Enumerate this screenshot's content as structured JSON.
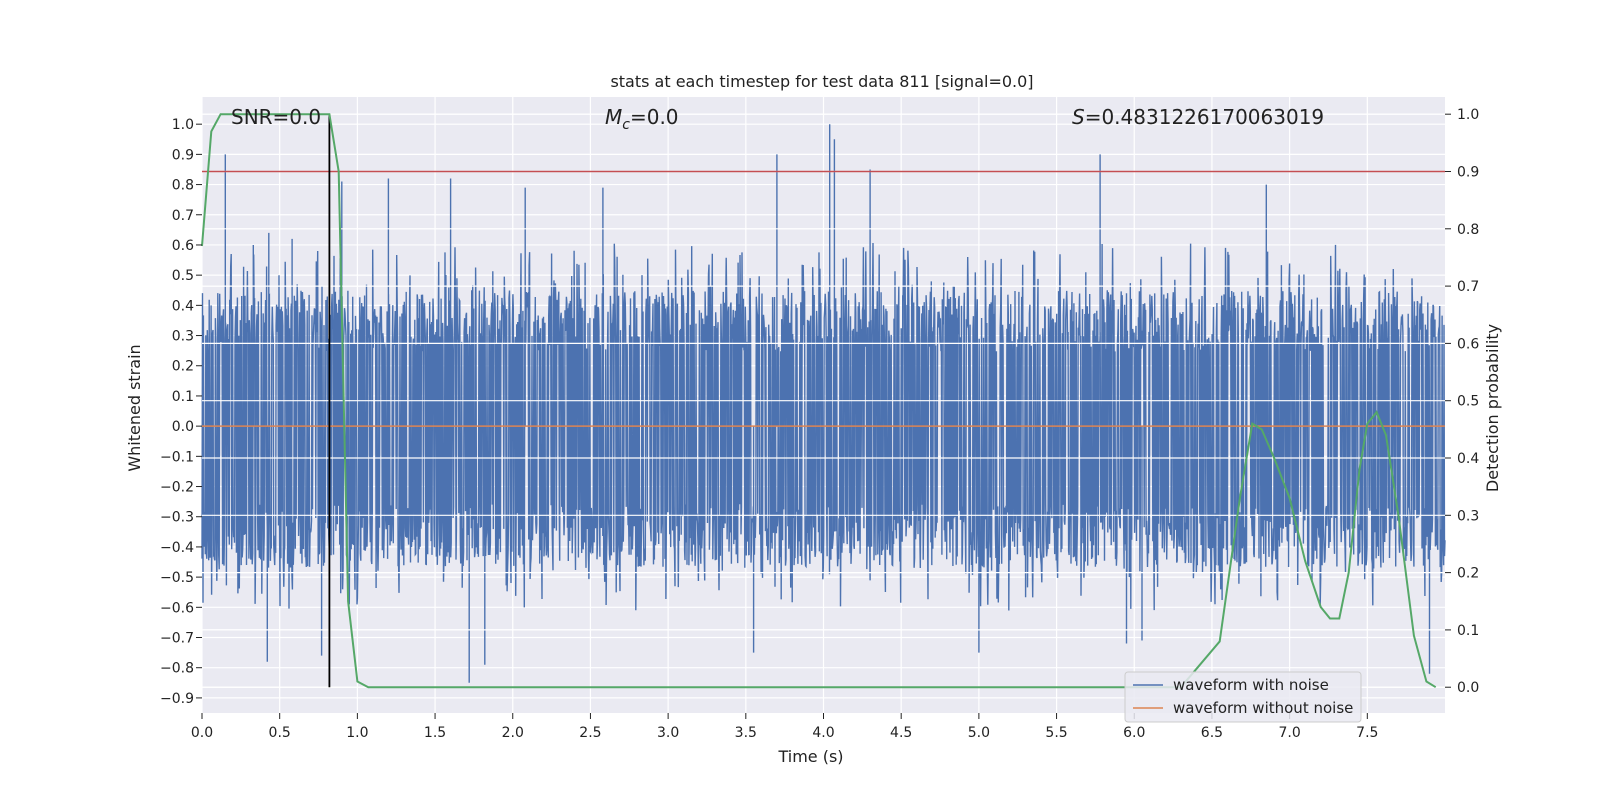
{
  "chart_data": {
    "type": "line",
    "title": "stats at each timestep for test data 811 [signal=0.0]",
    "xlabel": "Time (s)",
    "ylabel": "Whitened strain",
    "y2label": "Detection probability",
    "xlim": [
      0.0,
      8.0
    ],
    "ylim": [
      -0.95,
      1.09
    ],
    "y2lim": [
      -0.045,
      1.03
    ],
    "x_ticks": [
      "0.0",
      "0.5",
      "1.0",
      "1.5",
      "2.0",
      "2.5",
      "3.0",
      "3.5",
      "4.0",
      "4.5",
      "5.0",
      "5.5",
      "6.0",
      "6.5",
      "7.0",
      "7.5"
    ],
    "y_ticks": [
      "1.0",
      "0.9",
      "0.8",
      "0.7",
      "0.6",
      "0.5",
      "0.4",
      "0.3",
      "0.2",
      "0.1",
      "0.0",
      "-0.1",
      "-0.2",
      "-0.3",
      "-0.4",
      "-0.5",
      "-0.6",
      "-0.7",
      "-0.8",
      "-0.9"
    ],
    "y2_ticks": [
      "1.0",
      "0.9",
      "0.8",
      "0.7",
      "0.6",
      "0.5",
      "0.4",
      "0.3",
      "0.2",
      "0.1",
      "0.0"
    ],
    "grid": true,
    "background": "#eaeaf2",
    "legend_position": "lower-right",
    "annotations": {
      "snr": "SNR=0.0",
      "mc_symbol": "M",
      "mc_sub": "c",
      "mc_value": "=0.0",
      "s_symbol": "S",
      "s_value": "=0.4831226170063019"
    },
    "threshold_line": {
      "y2": 0.9,
      "color": "#c44e52"
    },
    "marker_line": {
      "x": 0.82,
      "y2_from": 0.0,
      "y2_to": 1.0,
      "color": "#000000"
    },
    "series": [
      {
        "name": "waveform with noise",
        "color": "#4c72b0",
        "style": "dense noise",
        "typical_band": [
          -0.47,
          0.45
        ],
        "peaks_pos": [
          [
            0.15,
            0.9
          ],
          [
            0.33,
            0.6
          ],
          [
            0.43,
            0.64
          ],
          [
            0.58,
            0.62
          ],
          [
            0.9,
            0.81
          ],
          [
            1.2,
            0.82
          ],
          [
            1.6,
            0.82
          ],
          [
            2.08,
            0.79
          ],
          [
            2.58,
            0.79
          ],
          [
            3.7,
            0.9
          ],
          [
            4.04,
            1.0
          ],
          [
            4.07,
            0.95
          ],
          [
            4.3,
            0.85
          ],
          [
            5.78,
            0.9
          ],
          [
            6.85,
            0.8
          ]
        ],
        "peaks_neg": [
          [
            0.42,
            -0.78
          ],
          [
            0.77,
            -0.76
          ],
          [
            1.72,
            -0.85
          ],
          [
            1.82,
            -0.79
          ],
          [
            3.55,
            -0.75
          ],
          [
            5.0,
            -0.75
          ],
          [
            5.95,
            -0.72
          ],
          [
            6.05,
            -0.71
          ],
          [
            7.9,
            -0.82
          ]
        ]
      },
      {
        "name": "waveform without noise",
        "color": "#dd8452",
        "x": [
          0.0,
          8.0
        ],
        "y": [
          0.0,
          0.0
        ]
      },
      {
        "name": "detection probability",
        "color": "#55a868",
        "axis": "right",
        "x": [
          0.0,
          0.06,
          0.12,
          0.18,
          0.3,
          0.5,
          0.7,
          0.82,
          0.88,
          0.94,
          1.0,
          1.07,
          1.5,
          2.0,
          3.0,
          4.0,
          5.0,
          6.0,
          6.3,
          6.55,
          6.68,
          6.76,
          6.82,
          6.9,
          7.0,
          7.1,
          7.2,
          7.26,
          7.32,
          7.38,
          7.45,
          7.5,
          7.56,
          7.62,
          7.7,
          7.8,
          7.88,
          7.94
        ],
        "y": [
          0.77,
          0.97,
          1.0,
          1.0,
          1.0,
          1.0,
          1.0,
          1.0,
          0.9,
          0.15,
          0.01,
          0.0,
          0.0,
          0.0,
          0.0,
          0.0,
          0.0,
          0.0,
          0.0,
          0.08,
          0.33,
          0.46,
          0.45,
          0.4,
          0.33,
          0.22,
          0.14,
          0.12,
          0.12,
          0.2,
          0.38,
          0.46,
          0.48,
          0.44,
          0.3,
          0.09,
          0.01,
          0.0
        ]
      }
    ]
  }
}
